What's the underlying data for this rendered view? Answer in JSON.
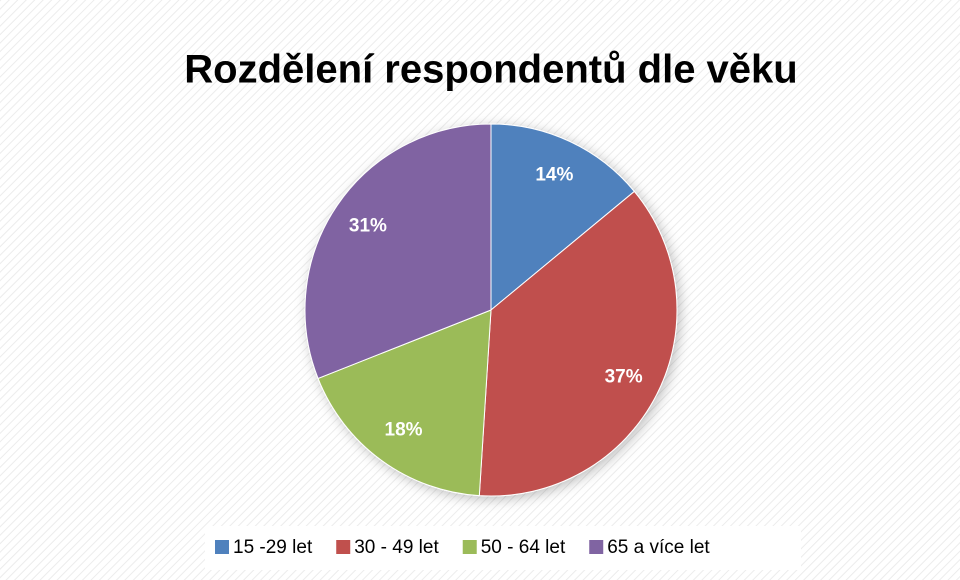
{
  "chart_data": {
    "type": "pie",
    "title": "Rozdělení respondentů dle věku",
    "categories": [
      "15 -29 let",
      "30 - 49 let",
      "50 - 64 let",
      "65 a více let"
    ],
    "values": [
      14,
      37,
      18,
      31
    ],
    "value_labels": [
      "14%",
      "37%",
      "18%",
      "31%"
    ],
    "colors": [
      "#4f81bd",
      "#c0504d",
      "#9bbb59",
      "#8064a2"
    ],
    "legend": "bottom"
  }
}
